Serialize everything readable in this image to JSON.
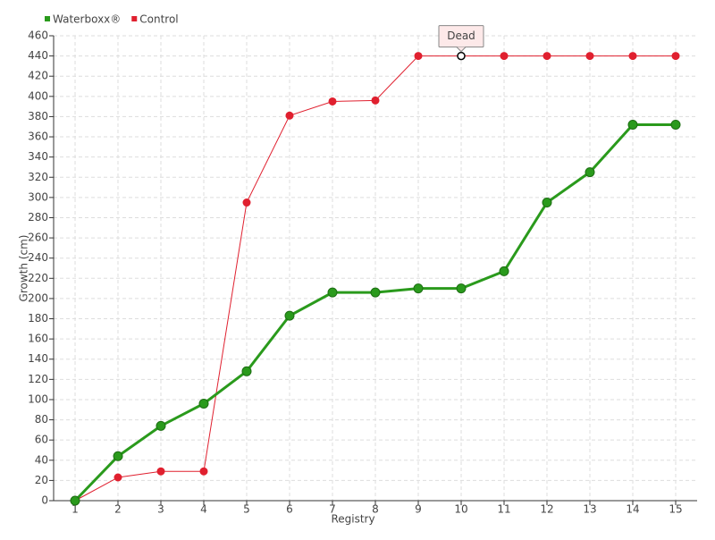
{
  "chart_data": {
    "type": "line",
    "x_label": "Registry",
    "y_label": "Growth (cm)",
    "categories": [
      1,
      2,
      3,
      4,
      5,
      6,
      7,
      8,
      9,
      10,
      11,
      12,
      13,
      14,
      15
    ],
    "series": [
      {
        "name": "Waterboxx®",
        "color": "#2a9a1c",
        "values": [
          0,
          44,
          74,
          96,
          128,
          183,
          206,
          206,
          210,
          210,
          227,
          295,
          325,
          372,
          372
        ]
      },
      {
        "name": "Control",
        "color": "#e0202f",
        "values": [
          0,
          23,
          29,
          29,
          295,
          381,
          395,
          396,
          440,
          440,
          440,
          440,
          440,
          440,
          440
        ]
      }
    ],
    "ylim": [
      0,
      460
    ],
    "yticks": [
      0,
      20,
      40,
      60,
      80,
      100,
      120,
      140,
      160,
      180,
      200,
      220,
      240,
      260,
      280,
      300,
      320,
      340,
      360,
      380,
      400,
      420,
      440,
      460
    ],
    "grid": true,
    "legend": "top-left",
    "annotations": [
      {
        "text": "Dead",
        "series": "Control",
        "category": 10
      }
    ]
  }
}
